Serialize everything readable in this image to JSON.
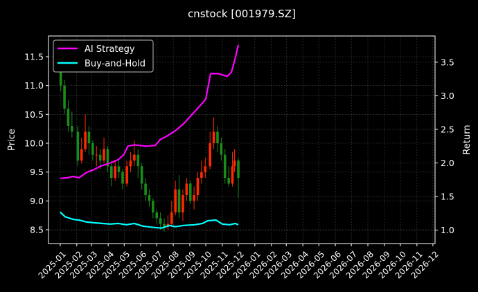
{
  "chart_data": {
    "type": "line",
    "title": "cnstock [001979.SZ]",
    "ylabel_left": "Price",
    "ylabel_right": "Return",
    "xlim": [
      "2024-12-10",
      "2026-12-05"
    ],
    "ylim_left": [
      8.26,
      11.86
    ],
    "ylim_right": [
      0.8,
      3.89
    ],
    "grid": true,
    "legend_placement": "top-left",
    "x_ticks": [
      "2025-01",
      "2025-02",
      "2025-03",
      "2025-04",
      "2025-05",
      "2025-06",
      "2025-07",
      "2025-08",
      "2025-09",
      "2025-10",
      "2025-11",
      "2025-12",
      "2026-01",
      "2026-02",
      "2026-03",
      "2026-04",
      "2026-05",
      "2026-06",
      "2026-07",
      "2026-08",
      "2026-09",
      "2026-10",
      "2026-11",
      "2026-12"
    ],
    "y_ticks_left": [
      8.5,
      9.0,
      9.5,
      10.0,
      10.5,
      11.0,
      11.5
    ],
    "y_ticks_right": [
      1.0,
      1.5,
      2.0,
      2.5,
      3.0,
      3.5
    ],
    "colors": {
      "up": "#ff2a00",
      "down": "#1a8c1a",
      "ai": "#ff00ff",
      "bh": "#00ffff",
      "grid": "#444444"
    },
    "price_ohlc": [
      [
        "2025-01-02",
        11.4,
        11.45,
        10.9,
        11.0
      ],
      [
        "2025-01-09",
        11.0,
        11.1,
        10.5,
        10.6
      ],
      [
        "2025-01-16",
        10.6,
        10.75,
        10.2,
        10.3
      ],
      [
        "2025-01-23",
        10.3,
        10.55,
        10.1,
        10.2
      ],
      [
        "2025-02-03",
        10.2,
        10.3,
        9.6,
        9.7
      ],
      [
        "2025-02-10",
        9.7,
        10.1,
        9.65,
        9.9
      ],
      [
        "2025-02-17",
        9.9,
        10.5,
        9.85,
        10.2
      ],
      [
        "2025-02-24",
        10.2,
        10.3,
        9.8,
        10.0
      ],
      [
        "2025-03-03",
        10.0,
        10.05,
        9.7,
        9.8
      ],
      [
        "2025-03-10",
        9.8,
        9.95,
        9.6,
        9.8
      ],
      [
        "2025-03-17",
        9.8,
        9.9,
        9.55,
        9.7
      ],
      [
        "2025-03-24",
        9.7,
        10.1,
        9.65,
        9.9
      ],
      [
        "2025-03-31",
        9.9,
        9.95,
        9.5,
        9.6
      ],
      [
        "2025-04-07",
        9.6,
        9.7,
        9.25,
        9.4
      ],
      [
        "2025-04-14",
        9.4,
        9.7,
        9.35,
        9.6
      ],
      [
        "2025-04-21",
        9.6,
        9.7,
        9.4,
        9.5
      ],
      [
        "2025-04-28",
        9.5,
        9.55,
        9.2,
        9.3
      ],
      [
        "2025-05-06",
        9.3,
        9.7,
        9.25,
        9.6
      ],
      [
        "2025-05-13",
        9.6,
        9.85,
        9.5,
        9.7
      ],
      [
        "2025-05-20",
        9.7,
        10.05,
        9.6,
        9.8
      ],
      [
        "2025-05-27",
        9.8,
        9.9,
        9.4,
        9.6
      ],
      [
        "2025-06-03",
        9.6,
        9.65,
        9.2,
        9.3
      ],
      [
        "2025-06-10",
        9.3,
        9.4,
        9.0,
        9.1
      ],
      [
        "2025-06-17",
        9.1,
        9.2,
        8.9,
        9.0
      ],
      [
        "2025-06-24",
        9.0,
        9.05,
        8.7,
        8.8
      ],
      [
        "2025-07-01",
        8.8,
        8.85,
        8.6,
        8.7
      ],
      [
        "2025-07-08",
        8.7,
        8.8,
        8.5,
        8.6
      ],
      [
        "2025-07-15",
        8.6,
        8.7,
        8.47,
        8.55
      ],
      [
        "2025-07-22",
        8.55,
        8.75,
        8.5,
        8.6
      ],
      [
        "2025-07-29",
        8.6,
        9.0,
        8.55,
        8.8
      ],
      [
        "2025-08-05",
        8.8,
        9.35,
        8.75,
        9.2
      ],
      [
        "2025-08-12",
        9.2,
        9.45,
        8.7,
        8.8
      ],
      [
        "2025-08-19",
        8.8,
        9.2,
        8.65,
        9.1
      ],
      [
        "2025-08-26",
        9.1,
        9.4,
        9.0,
        9.3
      ],
      [
        "2025-09-02",
        9.3,
        9.35,
        8.95,
        9.0
      ],
      [
        "2025-09-09",
        9.0,
        9.25,
        8.85,
        9.1
      ],
      [
        "2025-09-16",
        9.1,
        9.5,
        9.0,
        9.4
      ],
      [
        "2025-09-23",
        9.4,
        9.7,
        9.3,
        9.5
      ],
      [
        "2025-09-30",
        9.5,
        9.75,
        9.4,
        9.6
      ],
      [
        "2025-10-09",
        9.6,
        10.2,
        9.55,
        10.0
      ],
      [
        "2025-10-16",
        10.0,
        10.45,
        9.9,
        10.2
      ],
      [
        "2025-10-23",
        10.2,
        10.3,
        9.85,
        10.0
      ],
      [
        "2025-10-30",
        10.0,
        10.1,
        9.7,
        9.8
      ],
      [
        "2025-11-06",
        9.8,
        9.9,
        9.3,
        9.4
      ],
      [
        "2025-11-13",
        9.4,
        9.6,
        9.25,
        9.3
      ],
      [
        "2025-11-20",
        9.3,
        9.85,
        9.25,
        9.6
      ],
      [
        "2025-11-24",
        9.6,
        9.9,
        9.5,
        9.7
      ],
      [
        "2025-12-01",
        9.7,
        9.75,
        9.05,
        9.4
      ]
    ],
    "series": [
      {
        "name": "AI Strategy",
        "axis": "right",
        "x": [
          "2025-01-01",
          "2025-01-15",
          "2025-01-25",
          "2025-02-05",
          "2025-02-20",
          "2025-03-05",
          "2025-03-20",
          "2025-04-05",
          "2025-04-20",
          "2025-04-30",
          "2025-05-08",
          "2025-05-20",
          "2025-06-10",
          "2025-06-28",
          "2025-07-08",
          "2025-07-20",
          "2025-08-05",
          "2025-08-20",
          "2025-09-05",
          "2025-09-20",
          "2025-10-01",
          "2025-10-10",
          "2025-10-25",
          "2025-11-10",
          "2025-11-18",
          "2025-11-25",
          "2025-12-01"
        ],
        "values": [
          1.77,
          1.78,
          1.8,
          1.78,
          1.86,
          1.9,
          1.96,
          2.0,
          2.05,
          2.12,
          2.25,
          2.27,
          2.25,
          2.26,
          2.35,
          2.4,
          2.48,
          2.58,
          2.72,
          2.85,
          2.95,
          3.33,
          3.33,
          3.29,
          3.35,
          3.55,
          3.76
        ]
      },
      {
        "name": "Buy-and-Hold",
        "axis": "right",
        "x": [
          "2025-01-01",
          "2025-01-10",
          "2025-01-25",
          "2025-02-05",
          "2025-02-20",
          "2025-03-05",
          "2025-03-20",
          "2025-04-05",
          "2025-04-20",
          "2025-05-05",
          "2025-05-20",
          "2025-06-05",
          "2025-06-25",
          "2025-07-10",
          "2025-07-25",
          "2025-08-05",
          "2025-08-20",
          "2025-09-10",
          "2025-09-25",
          "2025-10-05",
          "2025-10-20",
          "2025-11-01",
          "2025-11-15",
          "2025-11-25",
          "2025-12-01"
        ],
        "values": [
          1.27,
          1.2,
          1.16,
          1.15,
          1.12,
          1.11,
          1.1,
          1.09,
          1.1,
          1.08,
          1.1,
          1.06,
          1.04,
          1.03,
          1.07,
          1.05,
          1.07,
          1.08,
          1.1,
          1.14,
          1.15,
          1.09,
          1.08,
          1.1,
          1.08
        ]
      }
    ]
  }
}
